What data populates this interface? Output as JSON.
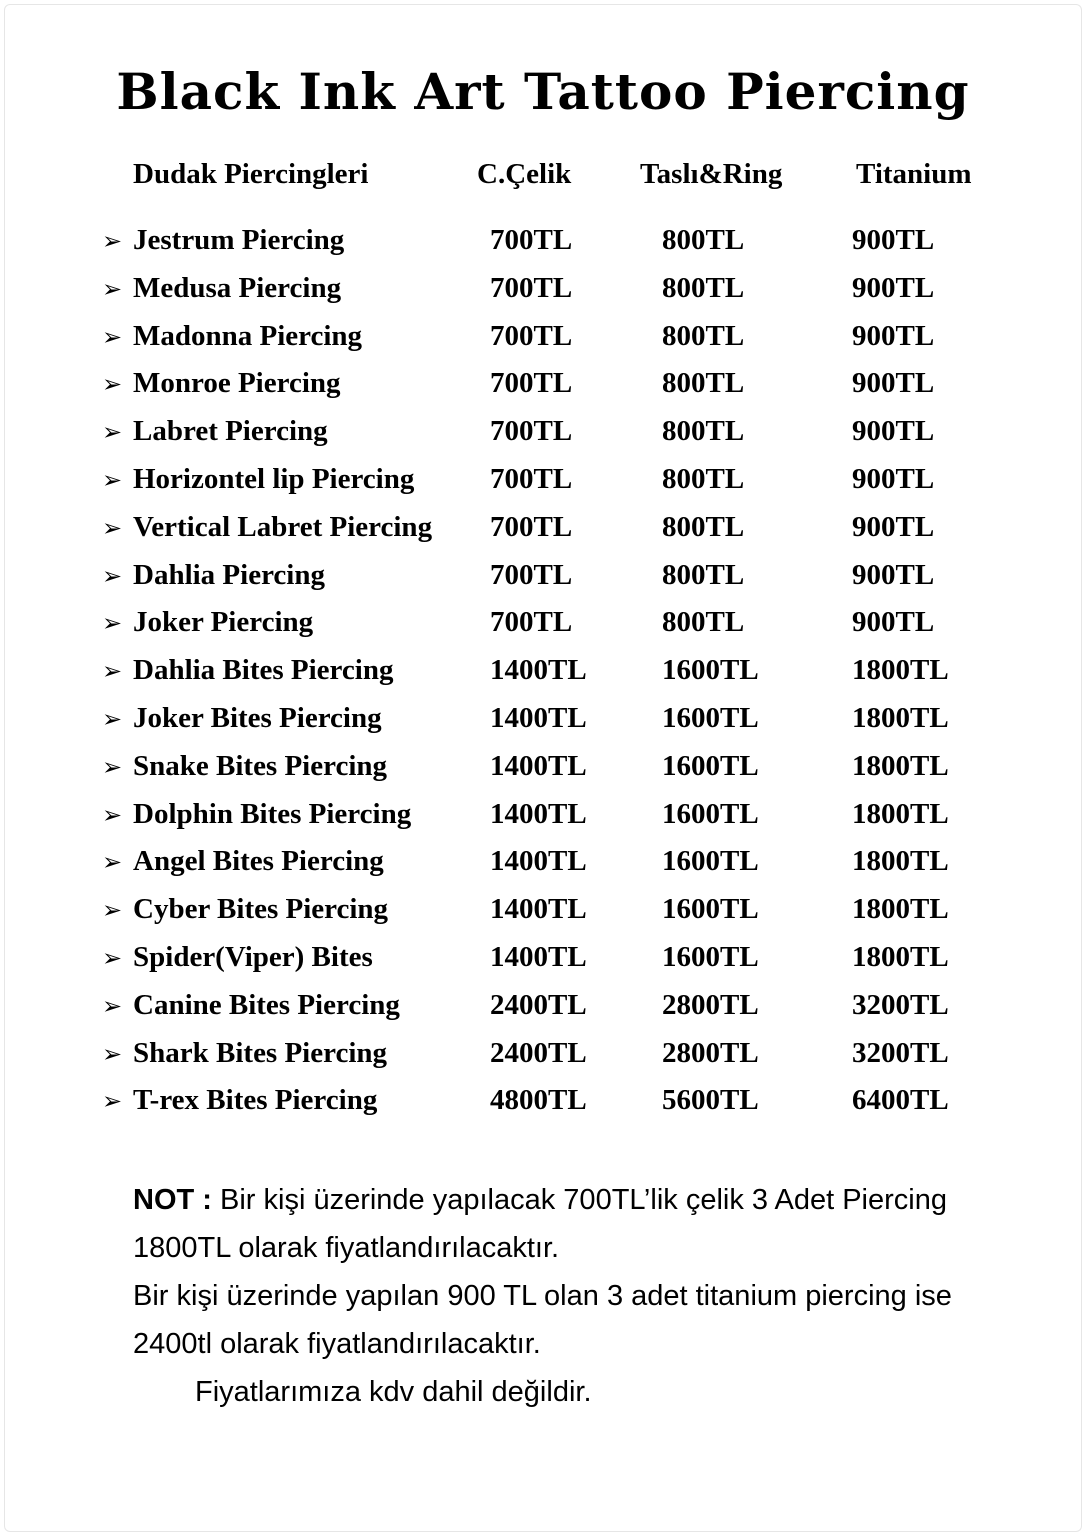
{
  "title": "Black Ink Art Tattoo Piercing",
  "header": {
    "category": "Dudak Piercingleri",
    "columns": [
      "C.Çelik",
      "Taslı&Ring",
      "Titanium"
    ]
  },
  "bullet_icon": "arrowhead-right-icon",
  "rows": [
    {
      "name": "Jestrum Piercing",
      "prices": [
        "700TL",
        "800TL",
        "900TL"
      ]
    },
    {
      "name": "Medusa Piercing",
      "prices": [
        "700TL",
        "800TL",
        "900TL"
      ]
    },
    {
      "name": "Madonna Piercing",
      "prices": [
        "700TL",
        "800TL",
        "900TL"
      ]
    },
    {
      "name": "Monroe Piercing",
      "prices": [
        "700TL",
        "800TL",
        "900TL"
      ]
    },
    {
      "name": "Labret Piercing",
      "prices": [
        "700TL",
        "800TL",
        "900TL"
      ]
    },
    {
      "name": "Horizontel lip Piercing",
      "prices": [
        "700TL",
        "800TL",
        "900TL"
      ]
    },
    {
      "name": "Vertical Labret Piercing",
      "prices": [
        "700TL",
        "800TL",
        "900TL"
      ]
    },
    {
      "name": "Dahlia Piercing",
      "prices": [
        "700TL",
        "800TL",
        "900TL"
      ]
    },
    {
      "name": "Joker Piercing",
      "prices": [
        "700TL",
        "800TL",
        "900TL"
      ]
    },
    {
      "name": "Dahlia Bites Piercing",
      "prices": [
        "1400TL",
        "1600TL",
        "1800TL"
      ]
    },
    {
      "name": "Joker Bites Piercing",
      "prices": [
        "1400TL",
        "1600TL",
        "1800TL"
      ]
    },
    {
      "name": "Snake Bites Piercing",
      "prices": [
        "1400TL",
        "1600TL",
        "1800TL"
      ]
    },
    {
      "name": "Dolphin Bites Piercing",
      "prices": [
        "1400TL",
        "1600TL",
        "1800TL"
      ]
    },
    {
      "name": "Angel Bites Piercing",
      "prices": [
        "1400TL",
        "1600TL",
        "1800TL"
      ]
    },
    {
      "name": "Cyber Bites Piercing",
      "prices": [
        "1400TL",
        "1600TL",
        "1800TL"
      ]
    },
    {
      "name": "Spider(Viper) Bites",
      "prices": [
        "1400TL",
        "1600TL",
        "1800TL"
      ]
    },
    {
      "name": "Canine Bites Piercing",
      "prices": [
        "2400TL",
        "2800TL",
        "3200TL"
      ]
    },
    {
      "name": "Shark Bites Piercing",
      "prices": [
        "2400TL",
        "2800TL",
        "3200TL"
      ]
    },
    {
      "name": "T-rex Bites Piercing",
      "prices": [
        "4800TL",
        "5600TL",
        "6400TL"
      ]
    }
  ],
  "note": {
    "label": "NOT :",
    "line1": " Bir kişi üzerinde yapılacak 700TL’lik çelik 3 Adet Piercing 1800TL olarak fiyatlandırılacaktır.",
    "line2": "Bir kişi üzerinde yapılan 900 TL olan  3 adet titanium piercing ise 2400tl olarak fiyatlandırılacaktır.",
    "line3": "Fiyatlarımıza kdv dahil değildir."
  }
}
